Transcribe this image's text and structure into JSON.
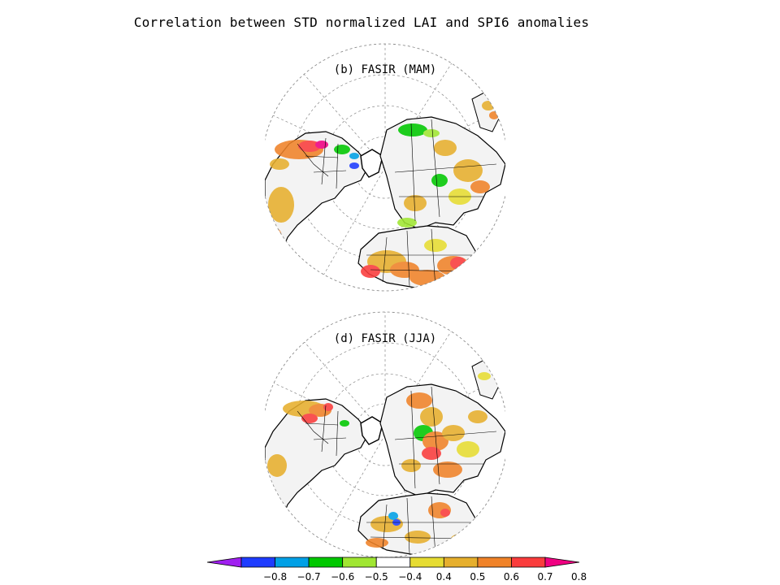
{
  "title": "Correlation between STD normalized LAI and SPI6 anomalies",
  "panels": [
    {
      "id": "b",
      "label": "(b) FASIR (MAM)",
      "season": "MAM"
    },
    {
      "id": "d",
      "label": "(d) FASIR (JJA)",
      "season": "JJA"
    }
  ],
  "colorbar": {
    "ticks": [
      "−0.8",
      "−0.7",
      "−0.6",
      "−0.5",
      "−0.4",
      "0.4",
      "0.5",
      "0.6",
      "0.7",
      "0.8"
    ],
    "colors": [
      "#a020f0",
      "#1e3cff",
      "#00a0e6",
      "#00c800",
      "#a0e632",
      "#ffffff",
      "#e6dc32",
      "#e6af2d",
      "#f08228",
      "#fa3c3c",
      "#f00082"
    ]
  },
  "palette": {
    "yellow": "#e6dc32",
    "gold": "#e6af2d",
    "orange": "#f08228",
    "red": "#fa3c3c",
    "green": "#00c800",
    "lightgreen": "#a0e632",
    "cyan": "#00a0e6"
  }
}
